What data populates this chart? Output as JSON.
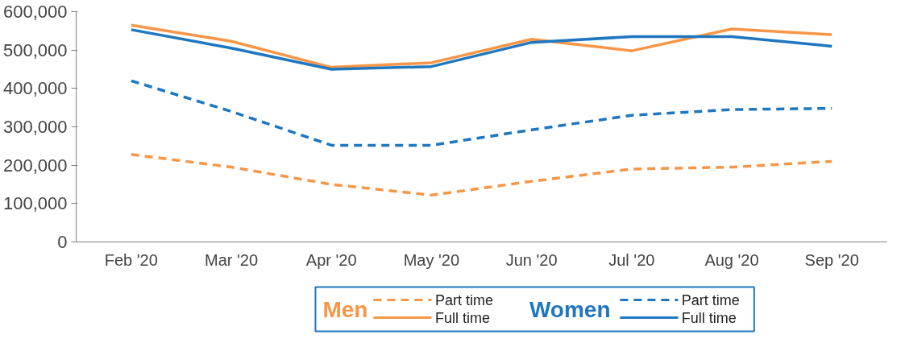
{
  "chart_data": {
    "type": "line",
    "categories": [
      "Feb '20",
      "Mar '20",
      "Apr '20",
      "May '20",
      "Jun '20",
      "Jul '20",
      "Aug '20",
      "Sep '20"
    ],
    "ylim": [
      0,
      600000
    ],
    "yticks": [
      {
        "value": 0,
        "label": "0"
      },
      {
        "value": 100000,
        "label": "100,000"
      },
      {
        "value": 200000,
        "label": "200,000"
      },
      {
        "value": 300000,
        "label": "300,000"
      },
      {
        "value": 400000,
        "label": "400,000"
      },
      {
        "value": 500000,
        "label": "500,000"
      },
      {
        "value": 600000,
        "label": "600,000"
      }
    ],
    "grid": false,
    "legend": "bottom",
    "annotations": [
      "Men",
      "Women"
    ],
    "series": [
      {
        "name": "Part time",
        "color": "#f79646",
        "line_style": "dashed",
        "values": [
          228000,
          195000,
          150000,
          122000,
          158000,
          190000,
          195000,
          210000
        ]
      },
      {
        "name": "Full time",
        "color": "#f79646",
        "line_style": "solid",
        "values": [
          565000,
          523000,
          455000,
          467000,
          528000,
          498000,
          555000,
          540000
        ]
      },
      {
        "name": "Part time",
        "color": "#1f77c0",
        "line_style": "dashed",
        "values": [
          420000,
          340000,
          252000,
          252000,
          292000,
          330000,
          345000,
          348000
        ]
      },
      {
        "name": "Full time",
        "color": "#1f77c0",
        "line_style": "solid",
        "values": [
          553000,
          505000,
          450000,
          457000,
          520000,
          535000,
          535000,
          510000
        ]
      }
    ]
  }
}
